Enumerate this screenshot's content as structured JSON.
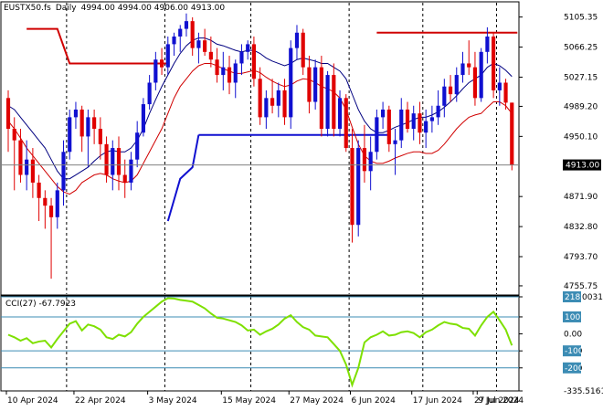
{
  "header": {
    "symbol": "EUSTX50.fs",
    "timeframe": "Daily",
    "ohlc": "4994.00 4994.00 4906.00 4913.00"
  },
  "price_axis": {
    "labels": [
      "5105.35",
      "5066.25",
      "5027.15",
      "4989.20",
      "4950.10",
      "4871.90",
      "4832.80",
      "4793.70",
      "4755.75"
    ],
    "current_price": "4913.00"
  },
  "cci": {
    "label": "CCI(27) -67.7923",
    "labels": [
      "218.0031",
      "100",
      "0.00",
      "-100",
      "-200",
      "-335.5161"
    ],
    "tags": [
      "218",
      "100",
      "-100",
      "-200"
    ],
    "line_color": "#7ee000"
  },
  "date_axis": {
    "labels": [
      "10 Apr 2024",
      "22 Apr 2024",
      "3 May 2024",
      "15 May 2024",
      "27 May 2024",
      "6 Jun 2024",
      "17 Jun 2024",
      "27 Jun 2024",
      "9 Jul 2024"
    ]
  },
  "colors": {
    "bull": "#1010d0",
    "bear": "#e00000",
    "ma_fast": "#000080",
    "ma_slow": "#d00000",
    "support": "#1010d0",
    "resistance": "#d00000"
  },
  "chart_data": {
    "type": "candlestick",
    "price_range": [
      4745,
      5118
    ],
    "cci_range": [
      -335.5161,
      218.0031
    ],
    "candles": [
      [
        5000,
        5010,
        4930,
        4960
      ],
      [
        4960,
        4975,
        4880,
        4945
      ],
      [
        4945,
        4960,
        4890,
        4900
      ],
      [
        4900,
        4945,
        4880,
        4920
      ],
      [
        4920,
        4935,
        4870,
        4890
      ],
      [
        4890,
        4900,
        4840,
        4870
      ],
      [
        4870,
        4880,
        4830,
        4860
      ],
      [
        4860,
        4870,
        4765,
        4845
      ],
      [
        4845,
        4890,
        4830,
        4880
      ],
      [
        4880,
        4945,
        4860,
        4930
      ],
      [
        4930,
        4985,
        4920,
        4975
      ],
      [
        4975,
        4995,
        4960,
        4985
      ],
      [
        4985,
        4990,
        4930,
        4950
      ],
      [
        4950,
        4985,
        4910,
        4975
      ],
      [
        4975,
        4985,
        4940,
        4960
      ],
      [
        4960,
        4975,
        4920,
        4940
      ],
      [
        4940,
        4950,
        4890,
        4900
      ],
      [
        4900,
        4945,
        4880,
        4935
      ],
      [
        4935,
        4950,
        4880,
        4900
      ],
      [
        4900,
        4920,
        4870,
        4890
      ],
      [
        4890,
        4930,
        4880,
        4920
      ],
      [
        4920,
        4970,
        4910,
        4955
      ],
      [
        4955,
        5000,
        4950,
        4992
      ],
      [
        4992,
        5030,
        4985,
        5020
      ],
      [
        5020,
        5060,
        5010,
        5050
      ],
      [
        5050,
        5065,
        5030,
        5040
      ],
      [
        5040,
        5080,
        5030,
        5070
      ],
      [
        5070,
        5085,
        5055,
        5080
      ],
      [
        5080,
        5095,
        5060,
        5090
      ],
      [
        5090,
        5110,
        5080,
        5100
      ],
      [
        5100,
        5105,
        5055,
        5065
      ],
      [
        5065,
        5085,
        5045,
        5075
      ],
      [
        5075,
        5090,
        5055,
        5060
      ],
      [
        5060,
        5080,
        5040,
        5050
      ],
      [
        5050,
        5065,
        5020,
        5030
      ],
      [
        5030,
        5060,
        5010,
        5040
      ],
      [
        5040,
        5055,
        5005,
        5020
      ],
      [
        5020,
        5050,
        5000,
        5045
      ],
      [
        5045,
        5070,
        5030,
        5060
      ],
      [
        5060,
        5075,
        5050,
        5070
      ],
      [
        5070,
        5080,
        5015,
        5025
      ],
      [
        5025,
        5040,
        4965,
        4975
      ],
      [
        4975,
        5010,
        4960,
        5000
      ],
      [
        5000,
        5025,
        4980,
        4990
      ],
      [
        4990,
        5020,
        4975,
        5010
      ],
      [
        5010,
        5025,
        4965,
        4975
      ],
      [
        4975,
        5075,
        4960,
        5065
      ],
      [
        5065,
        5095,
        5050,
        5085
      ],
      [
        5085,
        5090,
        5030,
        5040
      ],
      [
        5040,
        5055,
        4980,
        4995
      ],
      [
        4995,
        5050,
        4985,
        5040
      ],
      [
        5040,
        5055,
        4950,
        4960
      ],
      [
        4960,
        5035,
        4950,
        5030
      ],
      [
        5030,
        5045,
        4950,
        4960
      ],
      [
        4960,
        5010,
        4950,
        5000
      ],
      [
        5000,
        5005,
        4930,
        4935
      ],
      [
        4935,
        4960,
        4812,
        4835
      ],
      [
        4835,
        4945,
        4820,
        4935
      ],
      [
        4935,
        4965,
        4890,
        4905
      ],
      [
        4905,
        4950,
        4880,
        4930
      ],
      [
        4930,
        4985,
        4920,
        4975
      ],
      [
        4975,
        4995,
        4960,
        4985
      ],
      [
        4985,
        4990,
        4930,
        4940
      ],
      [
        4940,
        4960,
        4900,
        4945
      ],
      [
        4945,
        5000,
        4935,
        4985
      ],
      [
        4985,
        4995,
        4955,
        4960
      ],
      [
        4960,
        4990,
        4945,
        4980
      ],
      [
        4980,
        4995,
        4940,
        4955
      ],
      [
        4955,
        4985,
        4935,
        4970
      ],
      [
        4970,
        4990,
        4955,
        4975
      ],
      [
        4975,
        5010,
        4965,
        4990
      ],
      [
        4990,
        5025,
        4975,
        5015
      ],
      [
        5015,
        5030,
        4995,
        5005
      ],
      [
        5005,
        5040,
        4995,
        5030
      ],
      [
        5030,
        5060,
        5020,
        5045
      ],
      [
        5045,
        5075,
        5030,
        5040
      ],
      [
        5040,
        5060,
        4990,
        5000
      ],
      [
        5000,
        5065,
        4995,
        5060
      ],
      [
        5060,
        5092,
        5045,
        5080
      ],
      [
        5080,
        5085,
        5000,
        5010
      ],
      [
        5010,
        5040,
        4990,
        5020
      ],
      [
        5020,
        5025,
        4985,
        4994
      ],
      [
        4994,
        4994,
        4906,
        4913
      ]
    ],
    "ma_fast": [
      4990,
      4985,
      4975,
      4965,
      4955,
      4945,
      4935,
      4920,
      4905,
      4895,
      4895,
      4900,
      4905,
      4910,
      4918,
      4925,
      4930,
      4932,
      4930,
      4930,
      4935,
      4945,
      4960,
      4980,
      4998,
      5015,
      5030,
      5045,
      5058,
      5068,
      5075,
      5078,
      5078,
      5075,
      5070,
      5068,
      5065,
      5062,
      5060,
      5062,
      5062,
      5058,
      5052,
      5048,
      5045,
      5042,
      5045,
      5050,
      5052,
      5050,
      5048,
      5045,
      5045,
      5040,
      5035,
      5025,
      5005,
      4985,
      4970,
      4960,
      4955,
      4955,
      4958,
      4962,
      4965,
      4968,
      4972,
      4975,
      4975,
      4978,
      4982,
      4988,
      4995,
      5003,
      5012,
      5020,
      5025,
      5030,
      5040,
      5045,
      5042,
      5036,
      5028
    ],
    "ma_slow": [
      4970,
      4960,
      4948,
      4935,
      4925,
      4915,
      4905,
      4895,
      4885,
      4878,
      4875,
      4880,
      4890,
      4895,
      4900,
      4902,
      4900,
      4895,
      4892,
      4890,
      4892,
      4900,
      4915,
      4930,
      4945,
      4960,
      4980,
      5000,
      5015,
      5025,
      5035,
      5042,
      5045,
      5045,
      5042,
      5038,
      5035,
      5032,
      5032,
      5034,
      5036,
      5033,
      5027,
      5022,
      5018,
      5015,
      5017,
      5022,
      5025,
      5024,
      5020,
      5015,
      5012,
      5008,
      5000,
      4985,
      4962,
      4940,
      4925,
      4918,
      4915,
      4915,
      4918,
      4922,
      4925,
      4928,
      4930,
      4930,
      4928,
      4928,
      4932,
      4940,
      4950,
      4960,
      4968,
      4975,
      4978,
      4980,
      4988,
      4995,
      4995,
      4990,
      4980
    ],
    "cci": [
      -5,
      -20,
      -40,
      -25,
      -55,
      -45,
      -40,
      -80,
      -30,
      15,
      60,
      75,
      20,
      55,
      45,
      25,
      -20,
      -30,
      -5,
      -15,
      10,
      60,
      100,
      130,
      160,
      190,
      210,
      208,
      200,
      195,
      190,
      170,
      150,
      120,
      95,
      90,
      80,
      70,
      50,
      20,
      25,
      -5,
      15,
      30,
      55,
      90,
      110,
      70,
      40,
      25,
      -10,
      -15,
      -20,
      -60,
      -100,
      -180,
      -300,
      -200,
      -50,
      -20,
      -5,
      15,
      -10,
      -5,
      10,
      15,
      5,
      -20,
      10,
      25,
      50,
      70,
      60,
      55,
      35,
      30,
      -10,
      50,
      100,
      130,
      80,
      25,
      -67.79
    ],
    "support": {
      "price": 4952,
      "start_index": 31,
      "end_index": 62
    },
    "support_rise": [
      [
        26,
        4840
      ],
      [
        28,
        4895
      ],
      [
        30,
        4910
      ]
    ],
    "resistance_upper": {
      "price": 5085,
      "start_index": 60,
      "end_index": 94
    },
    "resistance_left": [
      [
        3,
        5090
      ],
      [
        8,
        5090
      ],
      [
        10,
        5045
      ],
      [
        26,
        5045
      ]
    ]
  }
}
